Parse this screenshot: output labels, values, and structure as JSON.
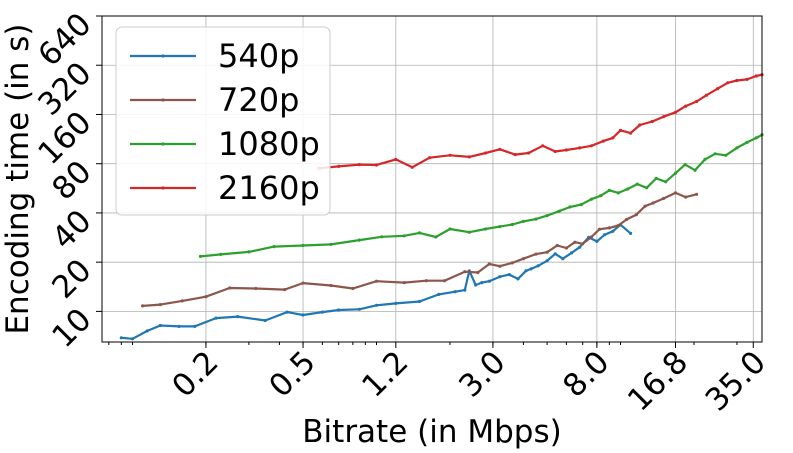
{
  "chart_data": {
    "type": "line",
    "xlabel": "Bitrate (in Mbps)",
    "ylabel": "Encoding time (in s)",
    "xscale": "log",
    "yscale": "log2",
    "xlim": [
      0.075,
      38
    ],
    "ylim": [
      6.5,
      640
    ],
    "xticks": [
      0.2,
      0.5,
      1.2,
      3.0,
      8.0,
      16.8,
      35.0
    ],
    "xtick_labels": [
      "0.2",
      "0.5",
      "1.2",
      "3.0",
      "8.0",
      "16.8",
      "35.0"
    ],
    "yticks": [
      10,
      20,
      40,
      80,
      160,
      320,
      640
    ],
    "ytick_labels": [
      "10",
      "20",
      "40",
      "80",
      "160",
      "320",
      "640"
    ],
    "grid": true,
    "legend": "top-left",
    "series": [
      {
        "name": "540p",
        "color": "#1f77b4",
        "x": [
          0.09,
          0.1,
          0.115,
          0.13,
          0.155,
          0.18,
          0.22,
          0.27,
          0.35,
          0.43,
          0.5,
          0.6,
          0.7,
          0.85,
          1.0,
          1.2,
          1.5,
          1.8,
          2.1,
          2.3,
          2.4,
          2.55,
          2.7,
          2.9,
          3.2,
          3.5,
          3.8,
          4.1,
          4.3,
          4.6,
          5.0,
          5.4,
          5.8,
          6.3,
          6.8,
          7.4,
          8.0,
          8.6,
          9.3,
          10.0,
          11.0
        ],
        "y": [
          6.9,
          6.8,
          7.6,
          8.2,
          8.1,
          8.1,
          9.1,
          9.3,
          8.8,
          9.9,
          9.5,
          9.9,
          10.2,
          10.3,
          10.9,
          11.2,
          11.5,
          12.7,
          13.2,
          13.5,
          17.7,
          14.5,
          15.0,
          15.3,
          16.3,
          16.8,
          15.8,
          17.7,
          18.2,
          19.0,
          20.4,
          22.5,
          21.0,
          22.8,
          24.7,
          28.4,
          26.8,
          29.4,
          30.9,
          33.9,
          30.0
        ]
      },
      {
        "name": "720p",
        "color": "#8c564b",
        "x": [
          0.11,
          0.13,
          0.16,
          0.2,
          0.25,
          0.32,
          0.42,
          0.5,
          0.65,
          0.8,
          1.0,
          1.3,
          1.6,
          1.9,
          2.3,
          2.6,
          2.9,
          3.2,
          3.6,
          4.0,
          4.5,
          5.0,
          5.5,
          6.0,
          6.5,
          7.0,
          7.6,
          8.2,
          9.0,
          9.8,
          10.6,
          11.6,
          12.6,
          13.6,
          15.0,
          16.8,
          18.5,
          20.5
        ],
        "y": [
          10.8,
          11.0,
          11.6,
          12.3,
          13.9,
          13.8,
          13.6,
          14.9,
          14.4,
          13.8,
          15.3,
          15.0,
          15.4,
          15.4,
          17.5,
          17.3,
          19.5,
          18.9,
          19.8,
          21.0,
          22.4,
          23.0,
          25.3,
          24.4,
          26.5,
          25.9,
          28.5,
          31.8,
          32.4,
          33.5,
          36.5,
          39.0,
          44.0,
          46.0,
          49.0,
          53.0,
          50.0,
          52.0
        ]
      },
      {
        "name": "1080p",
        "color": "#2ca02c",
        "x": [
          0.19,
          0.23,
          0.3,
          0.38,
          0.5,
          0.65,
          0.85,
          1.05,
          1.3,
          1.5,
          1.75,
          2.0,
          2.4,
          2.8,
          3.2,
          3.6,
          4.0,
          4.5,
          5.0,
          5.6,
          6.2,
          6.9,
          7.6,
          8.3,
          9.0,
          9.8,
          10.7,
          11.7,
          12.8,
          14.0,
          15.3,
          16.8,
          18.4,
          20.2,
          22.2,
          24.4,
          27.0,
          30.0,
          33.0,
          36.0,
          38.0
        ],
        "y": [
          21.7,
          22.3,
          23.1,
          24.9,
          25.3,
          25.7,
          27.3,
          28.6,
          29.0,
          30.2,
          28.5,
          31.9,
          30.5,
          31.9,
          33.0,
          34.0,
          35.5,
          36.7,
          38.5,
          41.0,
          43.5,
          45.0,
          48.5,
          51.0,
          55.0,
          53.0,
          56.0,
          60.0,
          57.0,
          65.0,
          62.0,
          70.0,
          79.0,
          73.0,
          85.0,
          92.0,
          90.0,
          100.0,
          108.0,
          115.0,
          120.0
        ]
      },
      {
        "name": "2160p",
        "color": "#d62728",
        "x": [
          0.58,
          0.7,
          0.85,
          1.0,
          1.2,
          1.4,
          1.65,
          2.0,
          2.4,
          2.8,
          3.2,
          3.7,
          4.2,
          4.8,
          5.4,
          6.0,
          6.8,
          7.6,
          8.5,
          9.3,
          10.0,
          11.0,
          12.0,
          13.5,
          15.0,
          16.8,
          18.5,
          20.5,
          22.5,
          25.0,
          27.5,
          30.0,
          33.0,
          36.0,
          38.0
        ],
        "y": [
          75.0,
          77.0,
          79.0,
          78.5,
          85.0,
          76.0,
          87.0,
          90.0,
          88.0,
          93.0,
          98.0,
          91.0,
          93.0,
          103.0,
          95.0,
          97.0,
          100.0,
          103.0,
          110.0,
          115.0,
          128.0,
          123.0,
          138.0,
          145.0,
          155.0,
          165.0,
          180.0,
          192.0,
          210.0,
          230.0,
          250.0,
          258.0,
          262.0,
          275.0,
          280.0
        ]
      }
    ]
  }
}
